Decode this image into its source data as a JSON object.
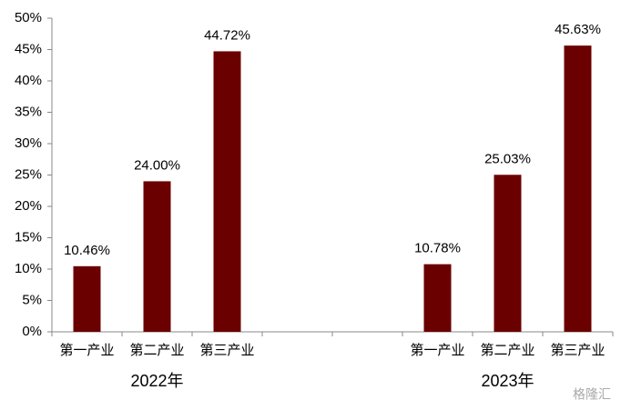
{
  "chart_data": {
    "type": "bar",
    "categories": [
      "第一产业",
      "第二产业",
      "第三产业",
      null,
      null,
      "第一产业",
      "第二产业",
      "第三产业"
    ],
    "values": [
      10.46,
      24.0,
      44.72,
      null,
      null,
      10.78,
      25.03,
      45.63
    ],
    "value_labels": [
      "10.46%",
      "24.00%",
      "44.72%",
      null,
      null,
      "10.78%",
      "25.03%",
      "45.63%"
    ],
    "groups": [
      "2022年",
      "2023年"
    ],
    "color": "#6b0000",
    "ylim": [
      0,
      50
    ],
    "yticks": [
      {
        "value": 0,
        "label": "0%"
      },
      {
        "value": 5,
        "label": "5%"
      },
      {
        "value": 10,
        "label": "10%"
      },
      {
        "value": 15,
        "label": "15%"
      },
      {
        "value": 20,
        "label": "20%"
      },
      {
        "value": 25,
        "label": "25%"
      },
      {
        "value": 30,
        "label": "30%"
      },
      {
        "value": 35,
        "label": "35%"
      },
      {
        "value": 40,
        "label": "40%"
      },
      {
        "value": 45,
        "label": "45%"
      },
      {
        "value": 50,
        "label": "50%"
      }
    ],
    "grid": false,
    "watermark": "格隆汇"
  }
}
